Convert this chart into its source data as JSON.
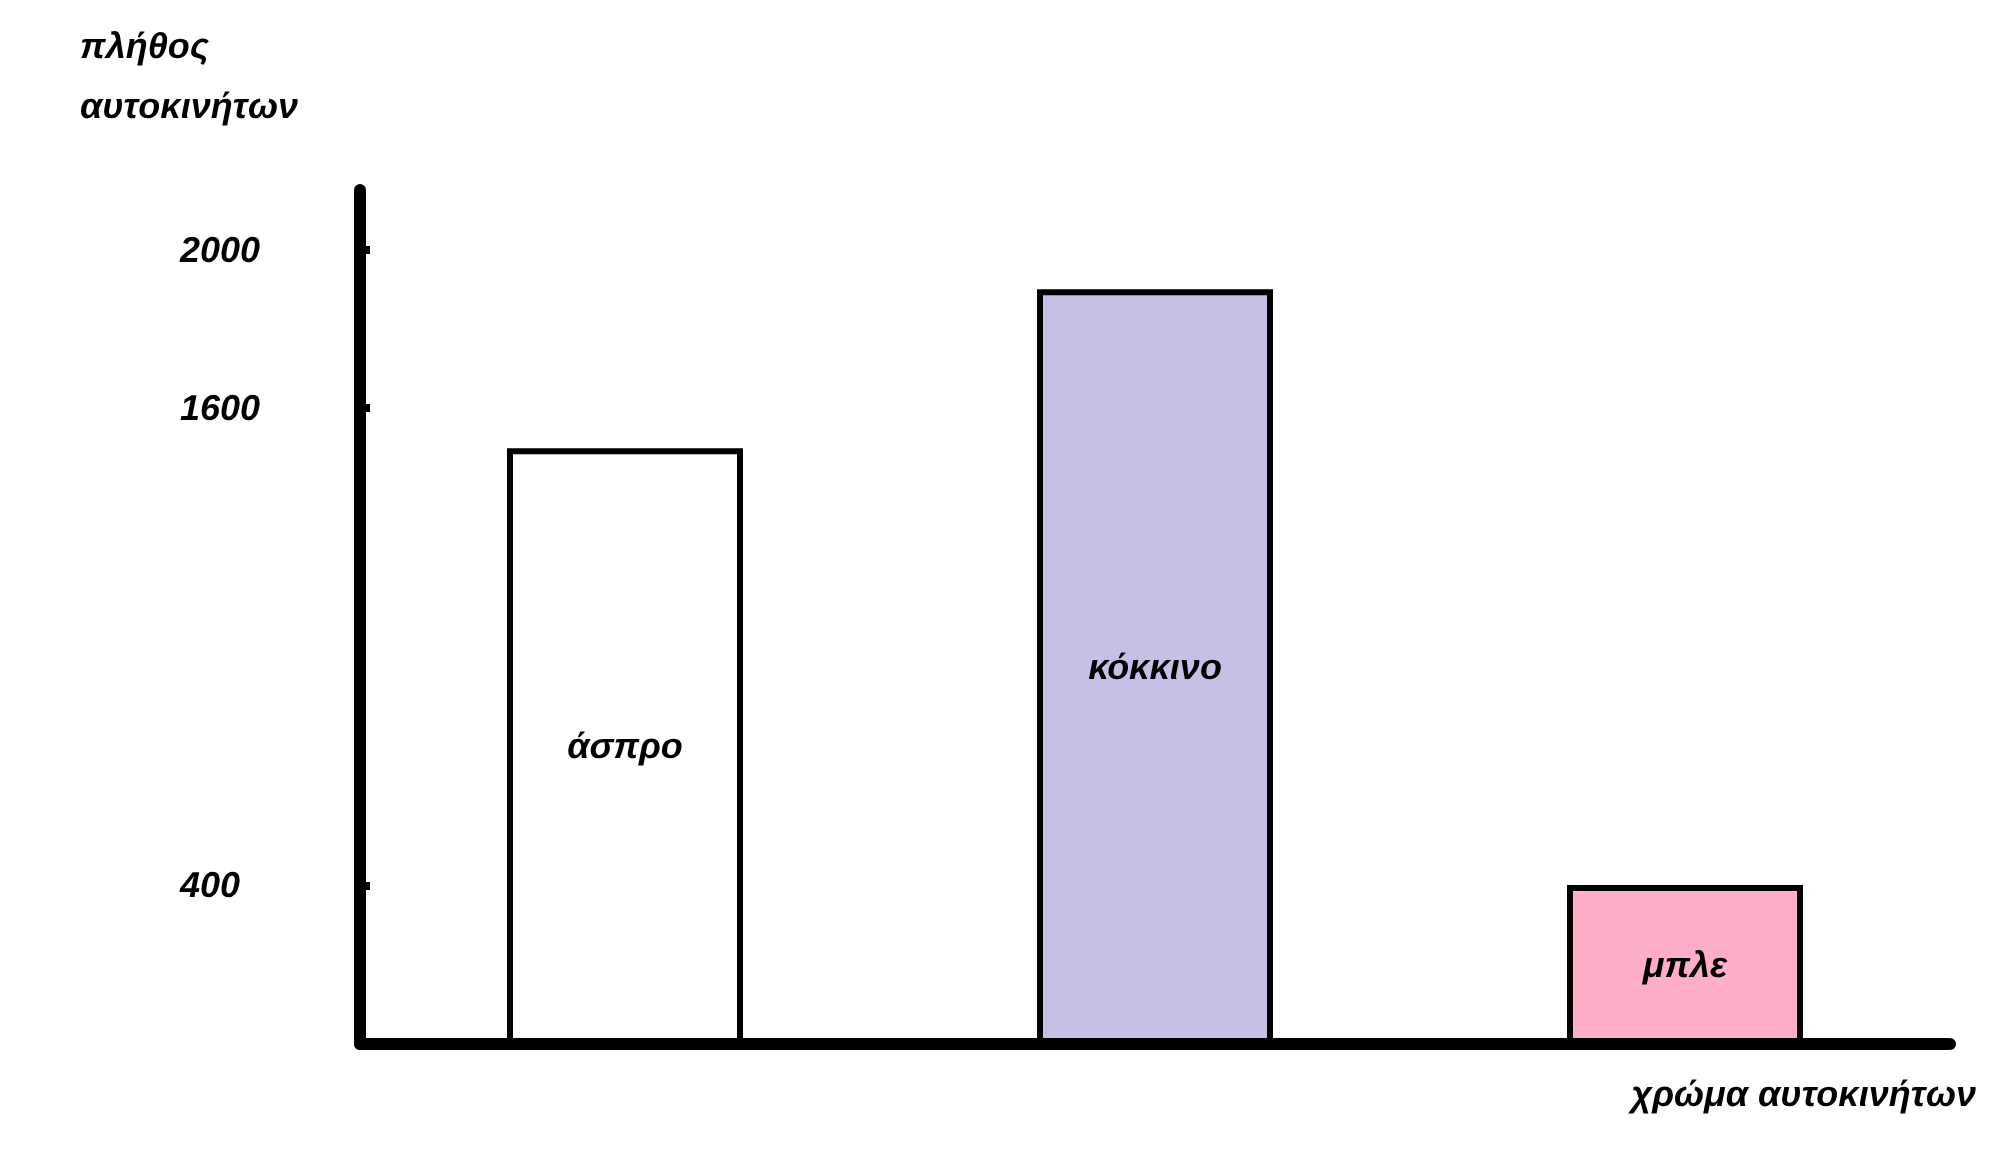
{
  "chart_data": {
    "type": "bar",
    "ylabel": "πλήθος\nαυτοκινήτων",
    "xlabel": "χρώμα αυτοκινήτων",
    "categories": [
      "άσπρο",
      "κόκκινο",
      "μπλε"
    ],
    "values": [
      1500,
      1900,
      400
    ],
    "colors": [
      "#ffffff",
      "#c8bfe7",
      "#ffaec9"
    ],
    "ylim": [
      0,
      2150
    ],
    "yticks": [
      400,
      1600,
      2000
    ],
    "grid": false,
    "tick_labels": "y"
  }
}
